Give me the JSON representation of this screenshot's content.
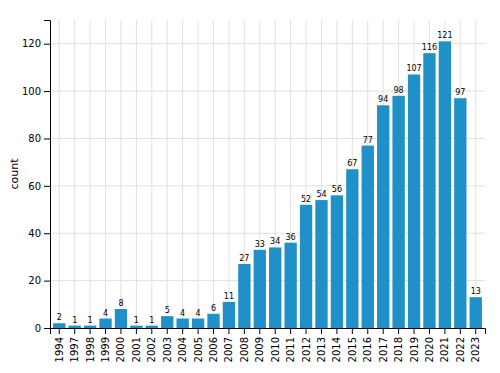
{
  "chart_data": {
    "type": "bar",
    "categories": [
      "1994",
      "1997",
      "1998",
      "1999",
      "2000",
      "2001",
      "2002",
      "2003",
      "2004",
      "2005",
      "2006",
      "2007",
      "2008",
      "2009",
      "2010",
      "2011",
      "2012",
      "2013",
      "2014",
      "2015",
      "2016",
      "2017",
      "2018",
      "2019",
      "2020",
      "2021",
      "2022",
      "2023"
    ],
    "values": [
      2,
      1,
      1,
      4,
      8,
      1,
      1,
      5,
      4,
      4,
      6,
      11,
      27,
      33,
      34,
      36,
      52,
      54,
      56,
      67,
      77,
      94,
      98,
      107,
      116,
      121,
      97,
      13
    ],
    "color": "#2090c8",
    "ylabel": "count",
    "ylim": [
      0,
      130
    ],
    "yticks": [
      0,
      20,
      40,
      60,
      80,
      100,
      120
    ],
    "grid": true,
    "data_labels": true
  }
}
